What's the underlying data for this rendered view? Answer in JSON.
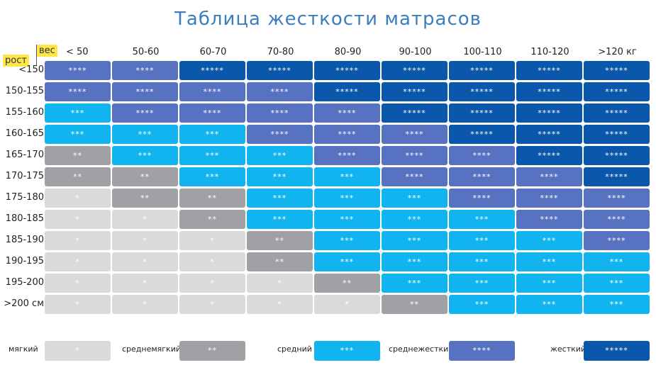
{
  "title": "Таблица жесткости матрасов",
  "corner": {
    "row_label": "рост",
    "col_label": "вес"
  },
  "columns": [
    "< 50",
    "50-60",
    "60-70",
    "70-80",
    "80-90",
    "90-100",
    "100-110",
    "110-120",
    ">120 кг"
  ],
  "rows": [
    {
      "label": "<150",
      "levels": [
        4,
        4,
        5,
        5,
        5,
        5,
        5,
        5,
        5
      ]
    },
    {
      "label": "150-155",
      "levels": [
        4,
        4,
        4,
        4,
        5,
        5,
        5,
        5,
        5
      ]
    },
    {
      "label": "155-160",
      "levels": [
        3,
        4,
        4,
        4,
        4,
        5,
        5,
        5,
        5
      ]
    },
    {
      "label": "160-165",
      "levels": [
        3,
        3,
        3,
        4,
        4,
        4,
        5,
        5,
        5
      ]
    },
    {
      "label": "165-170",
      "levels": [
        2,
        3,
        3,
        3,
        4,
        4,
        4,
        5,
        5
      ]
    },
    {
      "label": "170-175",
      "levels": [
        2,
        2,
        3,
        3,
        3,
        4,
        4,
        4,
        5
      ]
    },
    {
      "label": "175-180",
      "levels": [
        1,
        2,
        2,
        3,
        3,
        3,
        4,
        4,
        4
      ]
    },
    {
      "label": "180-185",
      "levels": [
        1,
        1,
        2,
        3,
        3,
        3,
        3,
        4,
        4
      ]
    },
    {
      "label": "185-190",
      "levels": [
        1,
        1,
        1,
        2,
        3,
        3,
        3,
        3,
        4
      ]
    },
    {
      "label": "190-195",
      "levels": [
        1,
        1,
        1,
        2,
        3,
        3,
        3,
        3,
        3
      ]
    },
    {
      "label": "195-200",
      "levels": [
        1,
        1,
        1,
        1,
        2,
        3,
        3,
        3,
        3
      ]
    },
    {
      "label": ">200 см",
      "levels": [
        1,
        1,
        1,
        1,
        1,
        2,
        3,
        3,
        3
      ]
    }
  ],
  "stars": {
    "1": "*",
    "2": "**",
    "3": "***",
    "4": "****",
    "5": "*****"
  },
  "legend": [
    {
      "label": "мягкий",
      "stars": "*",
      "level": 1
    },
    {
      "label": "среднемягкий",
      "stars": "**",
      "level": 2
    },
    {
      "label": "средний",
      "stars": "***",
      "level": 3
    },
    {
      "label": "среднежесткий",
      "stars": "****",
      "level": 4
    },
    {
      "label": "жесткий",
      "stars": "*****",
      "level": 5
    }
  ],
  "colors": {
    "level_1": "#d9dadc",
    "level_2": "#a0a1a5",
    "level_3": "#12b4ef",
    "level_4": "#5872c2",
    "level_5": "#0a57ab",
    "title": "#3b7ec0",
    "corner_highlight": "#ffe74a"
  }
}
